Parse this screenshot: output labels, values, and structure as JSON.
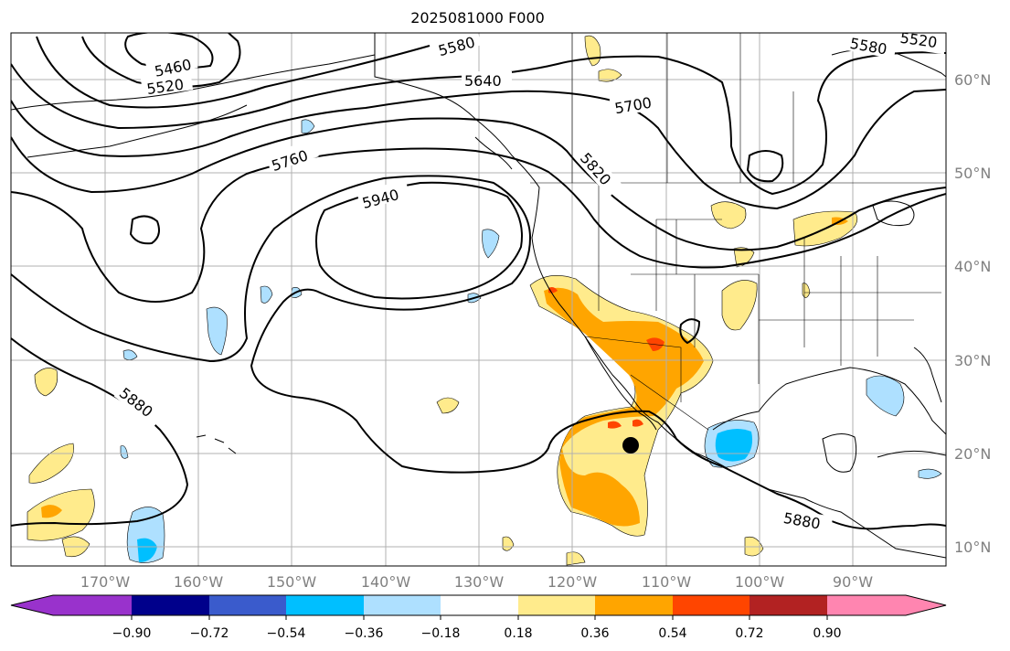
{
  "title": "2025081000 F000",
  "lat_labels": [
    "60°N",
    "50°N",
    "40°N",
    "30°N",
    "20°N",
    "10°N"
  ],
  "lon_labels": [
    "170°W",
    "160°W",
    "150°W",
    "140°W",
    "130°W",
    "120°W",
    "110°W",
    "100°W",
    "90°W"
  ],
  "contour_labels": [
    "5460",
    "5520",
    "5580",
    "5580",
    "5520",
    "5640",
    "5700",
    "5760",
    "5820",
    "5940",
    "5880",
    "5880"
  ],
  "colorbar": {
    "colors": [
      "#9932cc",
      "#00008b",
      "#3a5bcc",
      "#00bfff",
      "#aee0ff",
      "#ffffff",
      "#ffeb8c",
      "#ffa500",
      "#ff4500",
      "#b22222",
      "#ff85b0"
    ],
    "tick_labels": [
      "−0.90",
      "−0.72",
      "−0.54",
      "−0.36",
      "−0.18",
      "0.18",
      "0.36",
      "0.54",
      "0.72",
      "0.90"
    ]
  },
  "colors": {
    "contour_line": "#000000",
    "grid": "#b0b0b0",
    "axis_label": "#808080",
    "land_outline": "#000000"
  },
  "marker": "storm-center-dot"
}
